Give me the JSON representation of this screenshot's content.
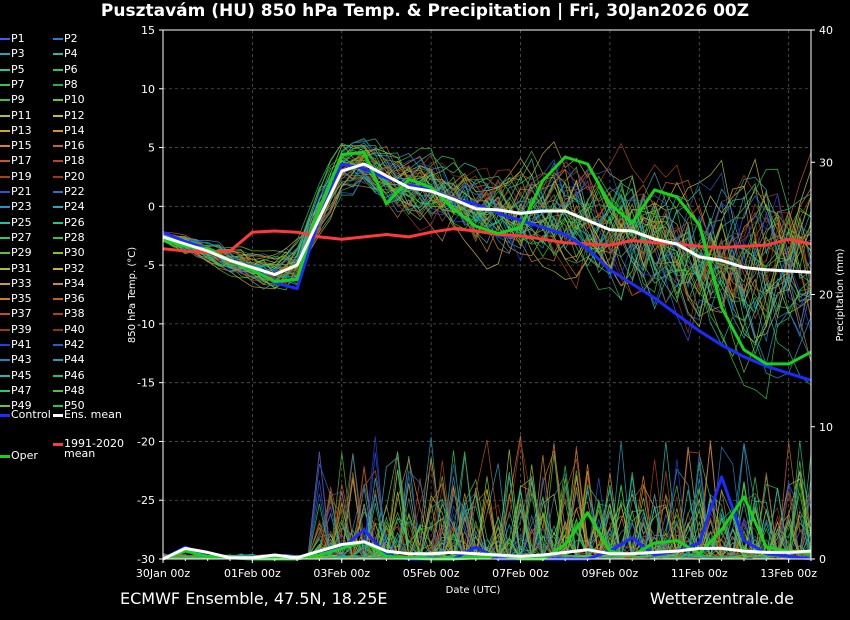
{
  "title": "Pusztavám  (HU)  850 hPa Temp. & Precipitation | Fri, 30Jan2026 00Z",
  "footer": {
    "left": "ECMWF Ensemble, 47.5N, 18.25E",
    "right": "Wetterzentrale.de"
  },
  "colors": {
    "background": "#000000",
    "control": "#1c2cff",
    "ens_mean": "#ffffff",
    "climate_mean": "#ff3a3a",
    "oper": "#16d21b",
    "grid": "#555555"
  },
  "chart_data": {
    "type": "line",
    "title": "Pusztavám  (HU)  850 hPa Temp. & Precipitation | Fri, 30Jan2026 00Z",
    "xlabel": "Date (UTC)",
    "ylabel": "850 hPa Temp. (°C)",
    "ylabel_right": "Precipitation (mm)",
    "x_ticks": [
      "30Jan 00z",
      "01Feb 00z",
      "03Feb 00z",
      "05Feb 00z",
      "07Feb 00z",
      "09Feb 00z",
      "11Feb 00z",
      "13Feb 00z"
    ],
    "x_range_days": [
      0,
      14.5
    ],
    "ylim": [
      -30,
      15
    ],
    "y_ticks": [
      15,
      10,
      5,
      0,
      -5,
      -10,
      -15,
      -20,
      -25,
      -30
    ],
    "ylim_right": [
      0,
      40
    ],
    "y_ticks_right": [
      40,
      30,
      20,
      10,
      0
    ],
    "grid": true,
    "legend_position": "left",
    "members": [
      "P1",
      "P2",
      "P3",
      "P4",
      "P5",
      "P6",
      "P7",
      "P8",
      "P9",
      "P10",
      "P11",
      "P12",
      "P13",
      "P14",
      "P15",
      "P16",
      "P17",
      "P18",
      "P19",
      "P20",
      "P21",
      "P22",
      "P23",
      "P24",
      "P25",
      "P26",
      "P27",
      "P28",
      "P29",
      "P30",
      "P31",
      "P32",
      "P33",
      "P34",
      "P35",
      "P36",
      "P37",
      "P38",
      "P39",
      "P40",
      "P41",
      "P42",
      "P43",
      "P44",
      "P45",
      "P46",
      "P47",
      "P48",
      "P49",
      "P50"
    ],
    "member_colors": [
      "#3a5cff",
      "#2a7ad8",
      "#2aa0c8",
      "#25b8b0",
      "#20c8a0",
      "#22c86a",
      "#30c850",
      "#2ab040",
      "#48c030",
      "#66c820",
      "#a8c820",
      "#c8c030",
      "#d0a830",
      "#d89028",
      "#d88030",
      "#c86828",
      "#c85828",
      "#b84820",
      "#a84018",
      "#a03818",
      "#3050e0",
      "#2a70d0",
      "#2890c8",
      "#22a8c0",
      "#20c0b0",
      "#20c890",
      "#30c860",
      "#40c040",
      "#60c030",
      "#80c820",
      "#b0c020",
      "#c8b828",
      "#d0a028",
      "#d08828",
      "#d07828",
      "#c86020",
      "#c05020",
      "#b04018",
      "#a03818",
      "#903018",
      "#2040e0",
      "#2060c8",
      "#2080c0",
      "#20a0c0",
      "#20b8b0",
      "#20c080",
      "#30c860",
      "#50c040",
      "#70c030",
      "#20d030"
    ],
    "series": [
      {
        "name": "Control",
        "temp_x_days": [
          0,
          0.5,
          1,
          1.5,
          2,
          2.5,
          3,
          3.5,
          4,
          4.5,
          5,
          5.5,
          6,
          6.5,
          7,
          7.5,
          8,
          8.5,
          9,
          9.5,
          10,
          10.5,
          11,
          11.5,
          12,
          12.5,
          13,
          13.5,
          14,
          14.5
        ],
        "temp": [
          -2.2,
          -3,
          -3.6,
          -4.6,
          -5.2,
          -6.5,
          -7,
          -1,
          3.6,
          3.2,
          2.4,
          1.8,
          1.4,
          0.6,
          0.2,
          -0.6,
          -1.2,
          -1.8,
          -2.4,
          -3.6,
          -5.4,
          -6.6,
          -7.8,
          -9.2,
          -10.6,
          -11.8,
          -12.8,
          -13.6,
          -14.2,
          -14.8
        ],
        "precip_x_days": [
          0,
          0.5,
          1,
          1.5,
          2,
          2.5,
          3,
          3.5,
          4,
          4.5,
          5,
          5.5,
          6,
          6.5,
          7,
          7.5,
          8,
          8.5,
          9,
          9.5,
          10,
          10.5,
          11,
          11.5,
          12,
          12.5,
          13,
          13.5,
          14,
          14.5
        ],
        "precip": [
          0,
          0.9,
          0.2,
          0.1,
          0,
          0,
          0,
          0.6,
          0.8,
          2.2,
          0.3,
          0,
          0,
          0,
          0.9,
          0,
          0,
          0,
          0,
          0,
          0.6,
          1.6,
          0.3,
          0.6,
          1.2,
          6.2,
          1.4,
          0.4,
          0.2,
          0
        ]
      },
      {
        "name": "Ens. mean",
        "temp_x_days": [
          0,
          0.5,
          1,
          1.5,
          2,
          2.5,
          3,
          3.5,
          4,
          4.5,
          5,
          5.5,
          6,
          6.5,
          7,
          7.5,
          8,
          8.5,
          9,
          9.5,
          10,
          10.5,
          11,
          11.5,
          12,
          12.5,
          13,
          13.5,
          14,
          14.5
        ],
        "temp": [
          -2.6,
          -3.2,
          -3.8,
          -4.6,
          -5.2,
          -5.8,
          -5,
          -1,
          3,
          3.6,
          2.6,
          1.6,
          1.3,
          0.6,
          -0.2,
          -0.3,
          -0.6,
          -0.4,
          -0.4,
          -1.2,
          -2,
          -2.1,
          -2.8,
          -3.2,
          -4.3,
          -4.6,
          -5.2,
          -5.4,
          -5.5,
          -5.6
        ],
        "precip_x_days": [
          0,
          0.5,
          1,
          1.5,
          2,
          2.5,
          3,
          3.5,
          4,
          4.5,
          5,
          5.5,
          6,
          6.5,
          7,
          7.5,
          8,
          8.5,
          9,
          9.5,
          10,
          10.5,
          11,
          11.5,
          12,
          12.5,
          13,
          13.5,
          14,
          14.5
        ],
        "precip": [
          0,
          0.8,
          0.5,
          0.1,
          0.1,
          0.3,
          0.1,
          0.6,
          1.1,
          1.3,
          0.6,
          0.4,
          0.4,
          0.5,
          0.4,
          0.3,
          0.2,
          0.3,
          0.5,
          0.7,
          0.4,
          0.4,
          0.5,
          0.6,
          0.8,
          0.8,
          0.6,
          0.5,
          0.5,
          0.6
        ]
      },
      {
        "name": "1991-2020 mean",
        "temp_x_days": [
          0,
          0.5,
          1,
          1.5,
          2,
          2.5,
          3,
          3.5,
          4,
          4.5,
          5,
          5.5,
          6,
          6.5,
          7,
          7.5,
          8,
          8.5,
          9,
          9.5,
          10,
          10.5,
          11,
          11.5,
          12,
          12.5,
          13,
          13.5,
          14,
          14.5
        ],
        "temp": [
          -3.6,
          -3.8,
          -3.9,
          -3.8,
          -2.2,
          -2.1,
          -2.2,
          -2.6,
          -2.8,
          -2.6,
          -2.4,
          -2.6,
          -2.2,
          -1.9,
          -2.1,
          -2.4,
          -2.5,
          -2.8,
          -3.1,
          -3.2,
          -3.3,
          -2.9,
          -3.1,
          -3.2,
          -3.4,
          -3.5,
          -3.4,
          -3.3,
          -2.8,
          -3.2
        ],
        "precip_x_days": [],
        "precip": []
      },
      {
        "name": "Oper",
        "temp_x_days": [
          0,
          0.5,
          1,
          1.5,
          2,
          2.5,
          3,
          3.5,
          4,
          4.5,
          5,
          5.5,
          6,
          6.5,
          7,
          7.5,
          8,
          8.5,
          9,
          9.5,
          10,
          10.5,
          11,
          11.5,
          12,
          12.5,
          13,
          13.5,
          14,
          14.5
        ],
        "temp": [
          -2.8,
          -3.4,
          -3.6,
          -4.6,
          -5.4,
          -6.4,
          -6.2,
          -0.2,
          4.4,
          4.6,
          0.2,
          2.3,
          1.6,
          -0.2,
          -1.7,
          -2.3,
          -1.8,
          2.2,
          4.2,
          3.6,
          0.2,
          -1.4,
          1.4,
          0.8,
          -1.6,
          -8.6,
          -12.2,
          -13.4,
          -13.4,
          -12.4
        ],
        "precip_x_days": [
          0,
          0.5,
          1,
          1.5,
          2,
          2.5,
          3,
          3.5,
          4,
          4.5,
          5,
          5.5,
          6,
          6.5,
          7,
          7.5,
          8,
          8.5,
          9,
          9.5,
          10,
          10.5,
          11,
          11.5,
          12,
          12.5,
          13,
          13.5,
          14,
          14.5
        ],
        "precip": [
          0,
          0.6,
          0.2,
          0.1,
          0,
          0,
          0,
          0.3,
          0.8,
          1.3,
          0.2,
          0.1,
          0,
          0,
          0.1,
          0.3,
          0,
          0,
          1.1,
          3.5,
          0.6,
          0.3,
          1.2,
          1.4,
          0.4,
          2.2,
          4.7,
          0.9,
          0.6,
          0.4
        ]
      }
    ],
    "legend": {
      "members": [
        "P1",
        "P2",
        "P3",
        "P4",
        "P5",
        "P6",
        "P7",
        "P8",
        "P9",
        "P10",
        "P11",
        "P12",
        "P13",
        "P14",
        "P15",
        "P16",
        "P17",
        "P18",
        "P19",
        "P20",
        "P21",
        "P22",
        "P23",
        "P24",
        "P25",
        "P26",
        "P27",
        "P28",
        "P29",
        "P30",
        "P31",
        "P32",
        "P33",
        "P34",
        "P35",
        "P36",
        "P37",
        "P38",
        "P39",
        "P40",
        "P41",
        "P42",
        "P43",
        "P44",
        "P45",
        "P46",
        "P47",
        "P48",
        "P49",
        "P50"
      ],
      "control": "Control",
      "ens_mean": "Ens. mean",
      "climate_line1": "1991-2020",
      "climate_line2": "mean",
      "oper": "Oper"
    }
  }
}
